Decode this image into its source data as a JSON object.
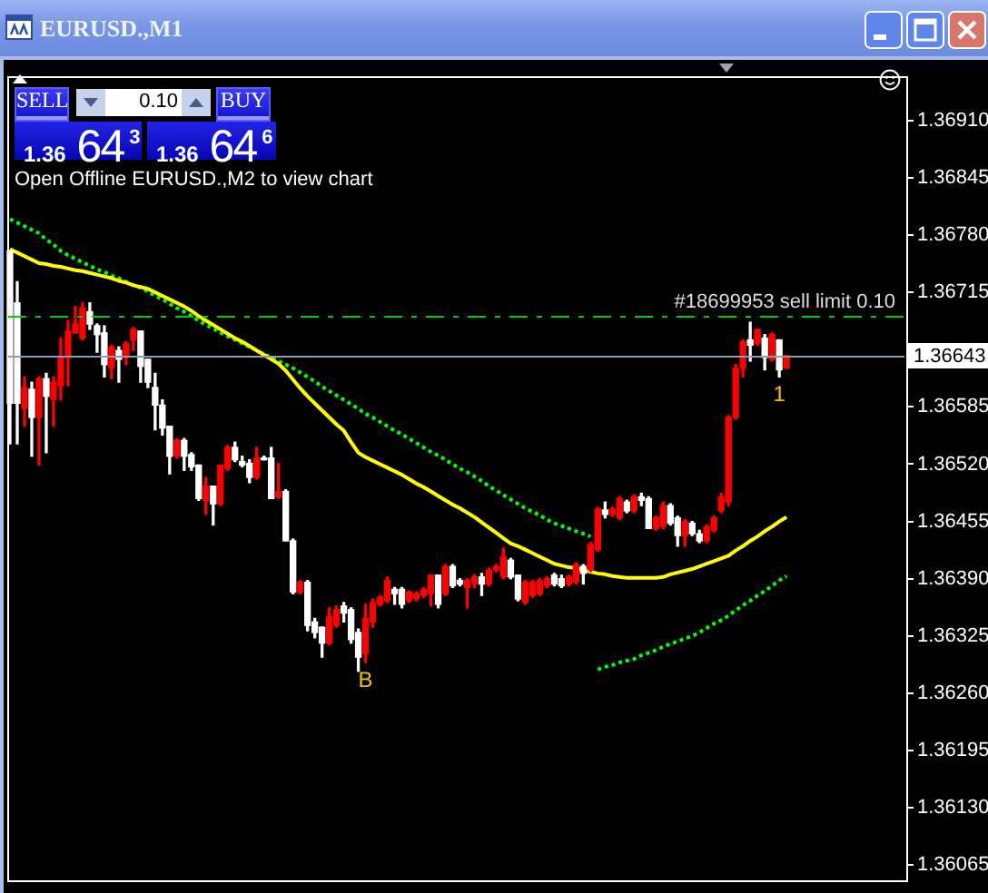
{
  "chart_data": {
    "type": "candlestick",
    "title": "EURUSD.,M1",
    "categories": [
      null,
      null,
      null,
      null,
      null,
      null,
      null,
      null,
      null,
      null,
      null,
      null,
      null,
      null,
      null,
      null,
      null,
      null,
      null,
      null,
      null,
      null,
      null,
      null,
      null,
      null,
      null,
      null,
      null,
      null,
      null,
      null,
      null,
      null,
      null,
      null,
      null,
      null,
      null,
      null,
      null,
      null,
      null,
      null,
      null,
      null,
      null,
      null,
      null,
      null,
      null,
      null,
      null,
      null,
      null,
      null,
      null,
      null,
      null,
      null,
      null,
      null,
      null,
      null,
      null,
      null,
      null,
      null,
      null,
      null,
      null,
      null,
      null,
      null,
      null,
      null,
      null,
      null,
      null,
      null,
      null,
      null,
      null,
      null,
      null,
      null,
      null,
      null,
      null,
      null,
      null,
      null,
      null,
      null,
      null,
      null,
      null,
      null,
      null,
      null,
      null,
      null,
      null,
      null,
      null,
      null,
      null,
      null
    ],
    "ohlc": [
      [
        1.36762,
        1.36762,
        1.36543,
        1.36589
      ],
      [
        1.36703,
        1.36727,
        1.36543,
        1.36589
      ],
      [
        1.36583,
        1.36619,
        1.36563,
        1.36607
      ],
      [
        1.36605,
        1.36613,
        1.36529,
        1.36573
      ],
      [
        1.36573,
        1.36619,
        1.36519,
        1.36617
      ],
      [
        1.36617,
        1.36623,
        1.36533,
        1.36597
      ],
      [
        1.36593,
        1.36619,
        1.36563,
        1.36613
      ],
      [
        1.36609,
        1.36663,
        1.36593,
        1.36641
      ],
      [
        1.36641,
        1.36683,
        1.36609,
        1.36671
      ],
      [
        1.36669,
        1.36699,
        1.36669,
        1.36679
      ],
      [
        1.36663,
        1.36703,
        1.36661,
        1.36697
      ],
      [
        1.36693,
        1.36703,
        1.36673,
        1.36679
      ],
      [
        1.36677,
        1.36679,
        1.36647,
        1.36667
      ],
      [
        1.36669,
        1.36677,
        1.36619,
        1.36633
      ],
      [
        1.36629,
        1.36655,
        1.36617,
        1.36653
      ],
      [
        1.36649,
        1.36653,
        1.36613,
        1.36639
      ],
      [
        1.36641,
        1.36659,
        1.36633,
        1.36657
      ],
      [
        1.36661,
        1.36675,
        1.36649,
        1.36673
      ],
      [
        1.36671,
        1.36671,
        1.36613,
        1.36631
      ],
      [
        1.36639,
        1.36639,
        1.36607,
        1.36613
      ],
      [
        1.36607,
        1.36623,
        1.36559,
        1.36587
      ],
      [
        1.36587,
        1.36593,
        1.36553,
        1.36561
      ],
      [
        1.36563,
        1.36563,
        1.36509,
        1.36529
      ],
      [
        1.36529,
        1.36549,
        1.36527,
        1.36547
      ],
      [
        1.36547,
        1.36549,
        1.36513,
        1.36529
      ],
      [
        1.36531,
        1.36533,
        1.36513,
        1.36517
      ],
      [
        1.36519,
        1.36519,
        1.36479,
        1.36481
      ],
      [
        1.36479,
        1.36505,
        1.36463,
        1.36495
      ],
      [
        1.36495,
        1.36495,
        1.36451,
        1.36475
      ],
      [
        1.36475,
        1.36519,
        1.36473,
        1.36519
      ],
      [
        1.36515,
        1.36541,
        1.36513,
        1.36539
      ],
      [
        1.36539,
        1.36545,
        1.36523,
        1.36525
      ],
      [
        1.36523,
        1.36529,
        1.36517,
        1.36519
      ],
      [
        1.36521,
        1.36525,
        1.36499,
        1.36505
      ],
      [
        1.36505,
        1.36539,
        1.36503,
        1.36527
      ],
      [
        1.36527,
        1.36529,
        1.36525,
        1.36525
      ],
      [
        1.36527,
        1.36539,
        1.36481,
        1.36481
      ],
      [
        1.36483,
        1.36521,
        1.36481,
        1.36489
      ],
      [
        1.36489,
        1.36491,
        1.36433,
        1.36433
      ],
      [
        1.36433,
        1.36435,
        1.36373,
        1.36375
      ],
      [
        1.36375,
        1.36388,
        1.36373,
        1.36386
      ],
      [
        1.36386,
        1.36388,
        1.36331,
        1.36337
      ],
      [
        1.36341,
        1.36345,
        1.36323,
        1.36329
      ],
      [
        1.36335,
        1.36335,
        1.36301,
        1.36317
      ],
      [
        1.36317,
        1.36357,
        1.36315,
        1.36347
      ],
      [
        1.36337,
        1.36359,
        1.36335,
        1.36355
      ],
      [
        1.36359,
        1.36363,
        1.36341,
        1.36351
      ],
      [
        1.36355,
        1.36357,
        1.36317,
        1.36321
      ],
      [
        1.36329,
        1.36333,
        1.36285,
        1.36301
      ],
      [
        1.36305,
        1.36361,
        1.36295,
        1.36345
      ],
      [
        1.36341,
        1.36367,
        1.36335,
        1.36363
      ],
      [
        1.36361,
        1.36371,
        1.36359,
        1.36369
      ],
      [
        1.36365,
        1.36392,
        1.36363,
        1.36388
      ],
      [
        1.36378,
        1.3638,
        1.36361,
        1.36373
      ],
      [
        1.36378,
        1.3638,
        1.36357,
        1.36361
      ],
      [
        1.36365,
        1.36376,
        1.36363,
        1.36375
      ],
      [
        1.36367,
        1.36375,
        1.36365,
        1.36373
      ],
      [
        1.36371,
        1.3638,
        1.36369,
        1.36378
      ],
      [
        1.36373,
        1.36394,
        1.36359,
        1.36394
      ],
      [
        1.36394,
        1.36394,
        1.36357,
        1.36361
      ],
      [
        1.36373,
        1.36406,
        1.36371,
        1.36404
      ],
      [
        1.36404,
        1.36406,
        1.3638,
        1.36382
      ],
      [
        1.36388,
        1.3639,
        1.36382,
        1.36384
      ],
      [
        1.3638,
        1.3639,
        1.36357,
        1.36388
      ],
      [
        1.36384,
        1.36394,
        1.3638,
        1.36392
      ],
      [
        1.36392,
        1.36396,
        1.36371,
        1.36384
      ],
      [
        1.36384,
        1.36402,
        1.36382,
        1.364
      ],
      [
        1.364,
        1.36406,
        1.36398,
        1.36404
      ],
      [
        1.36392,
        1.36425,
        1.3639,
        1.36415
      ],
      [
        1.36411,
        1.36413,
        1.3639,
        1.36392
      ],
      [
        1.36394,
        1.36394,
        1.36365,
        1.36367
      ],
      [
        1.36363,
        1.36388,
        1.36361,
        1.36386
      ],
      [
        1.36371,
        1.36388,
        1.36369,
        1.36386
      ],
      [
        1.36373,
        1.3639,
        1.36371,
        1.36388
      ],
      [
        1.36382,
        1.36392,
        1.3638,
        1.3639
      ],
      [
        1.36394,
        1.36396,
        1.36382,
        1.36384
      ],
      [
        1.3639,
        1.36394,
        1.3638,
        1.36382
      ],
      [
        1.36384,
        1.36394,
        1.36382,
        1.36392
      ],
      [
        1.36386,
        1.36408,
        1.36384,
        1.36406
      ],
      [
        1.36404,
        1.36406,
        1.36384,
        1.36396
      ],
      [
        1.364,
        1.36431,
        1.36398,
        1.36429
      ],
      [
        1.36423,
        1.36471,
        1.36421,
        1.36469
      ],
      [
        1.36468,
        1.36477,
        1.36459,
        1.36463
      ],
      [
        1.36463,
        1.36471,
        1.36461,
        1.36469
      ],
      [
        1.36459,
        1.36483,
        1.36457,
        1.36481
      ],
      [
        1.36477,
        1.36479,
        1.36465,
        1.36467
      ],
      [
        1.36467,
        1.36485,
        1.36465,
        1.36483
      ],
      [
        1.36483,
        1.36487,
        1.36473,
        1.36479
      ],
      [
        1.36481,
        1.36483,
        1.36447,
        1.36447
      ],
      [
        1.36447,
        1.36461,
        1.36445,
        1.36459
      ],
      [
        1.36449,
        1.36477,
        1.36447,
        1.36473
      ],
      [
        1.36473,
        1.36475,
        1.36451,
        1.36453
      ],
      [
        1.36459,
        1.36461,
        1.36427,
        1.36439
      ],
      [
        1.36439,
        1.36457,
        1.36427,
        1.36455
      ],
      [
        1.36453,
        1.36455,
        1.36439,
        1.36441
      ],
      [
        1.36441,
        1.36445,
        1.36431,
        1.36433
      ],
      [
        1.36433,
        1.36451,
        1.36431,
        1.36449
      ],
      [
        1.36445,
        1.36461,
        1.36443,
        1.36459
      ],
      [
        1.36467,
        1.36487,
        1.36465,
        1.36483
      ],
      [
        1.36477,
        1.36575,
        1.36473,
        1.36573
      ],
      [
        1.36573,
        1.36633,
        1.36571,
        1.36629
      ],
      [
        1.36629,
        1.36661,
        1.36619,
        1.36659
      ],
      [
        1.36661,
        1.36681,
        1.36637,
        1.36655
      ],
      [
        1.36657,
        1.36673,
        1.36655,
        1.36673
      ],
      [
        1.36663,
        1.36667,
        1.36627,
        1.36641
      ],
      [
        1.36639,
        1.36669,
        1.36637,
        1.36667
      ],
      [
        1.36661,
        1.36661,
        1.36619,
        1.36627
      ],
      [
        1.36629,
        1.36643,
        1.36629,
        1.36643
      ]
    ],
    "colors": [
      "#ffffff",
      "#ffffff",
      "#ff0000",
      "#ffffff",
      "#ff0000",
      "#ffffff",
      "#ff0000",
      "#ff0000",
      "#ff0000",
      "#ff0000",
      "#ff0000",
      "#ffffff",
      "#ffffff",
      "#ffffff",
      "#ff0000",
      "#ffffff",
      "#ff0000",
      "#ff0000",
      "#ffffff",
      "#ffffff",
      "#ffffff",
      "#ffffff",
      "#ffffff",
      "#ff0000",
      "#ffffff",
      "#ffffff",
      "#ffffff",
      "#ff0000",
      "#ffffff",
      "#ff0000",
      "#ff0000",
      "#ffffff",
      "#ffffff",
      "#ffffff",
      "#ff0000",
      "#ffffff",
      "#ffffff",
      "#ff0000",
      "#ffffff",
      "#ffffff",
      "#ff0000",
      "#ffffff",
      "#ffffff",
      "#ffffff",
      "#ff0000",
      "#ff0000",
      "#ffffff",
      "#ffffff",
      "#ffffff",
      "#ff0000",
      "#ff0000",
      "#ff0000",
      "#ff0000",
      "#ffffff",
      "#ffffff",
      "#ff0000",
      "#ff0000",
      "#ff0000",
      "#ff0000",
      "#ffffff",
      "#ff0000",
      "#ffffff",
      "#ffffff",
      "#ff0000",
      "#ff0000",
      "#ffffff",
      "#ff0000",
      "#ff0000",
      "#ff0000",
      "#ffffff",
      "#ffffff",
      "#ff0000",
      "#ff0000",
      "#ff0000",
      "#ff0000",
      "#ffffff",
      "#ffffff",
      "#ff0000",
      "#ff0000",
      "#ffffff",
      "#ff0000",
      "#ff0000",
      "#ffffff",
      "#ff0000",
      "#ff0000",
      "#ffffff",
      "#ff0000",
      "#ffffff",
      "#ffffff",
      "#ff0000",
      "#ff0000",
      "#ffffff",
      "#ffffff",
      "#ff0000",
      "#ffffff",
      "#ffffff",
      "#ff0000",
      "#ff0000",
      "#ff0000",
      "#ff0000",
      "#ff0000",
      "#ff0000",
      "#ffffff",
      "#ff0000",
      "#ffffff",
      "#ff0000",
      "#ffffff",
      "#ff0000"
    ],
    "value_labels": [
      null,
      null,
      null,
      null,
      null,
      null,
      null,
      null,
      null,
      null,
      null,
      null,
      null,
      null,
      null,
      null,
      null,
      null,
      null,
      null,
      null,
      null,
      null,
      null,
      null,
      null,
      null,
      null,
      null,
      null,
      null,
      null,
      null,
      null,
      null,
      null,
      null,
      null,
      null,
      null,
      null,
      null,
      null,
      null,
      null,
      null,
      null,
      null,
      null,
      "B",
      null,
      null,
      null,
      null,
      null,
      null,
      null,
      null,
      null,
      null,
      null,
      null,
      null,
      null,
      null,
      null,
      null,
      null,
      null,
      null,
      null,
      null,
      null,
      null,
      null,
      null,
      null,
      null,
      null,
      null,
      null,
      null,
      null,
      null,
      null,
      null,
      null,
      null,
      null,
      null,
      null,
      null,
      null,
      null,
      null,
      null,
      null,
      null,
      null,
      null,
      null,
      null,
      null,
      null,
      null,
      null,
      "1",
      null
    ],
    "series": [
      {
        "type": "line",
        "color": "#ffff00",
        "values": [
          1.36764,
          1.3676,
          1.36756,
          1.36752,
          1.36748,
          1.36747,
          1.36745,
          1.36744,
          1.36742,
          1.3674,
          1.36739,
          1.36737,
          1.36735,
          1.36733,
          1.36731,
          1.36728,
          1.36726,
          1.36723,
          1.36721,
          1.36719,
          1.36715,
          1.36711,
          1.36707,
          1.36703,
          1.36699,
          1.36694,
          1.36688,
          1.36683,
          1.36678,
          1.36673,
          1.36668,
          1.36663,
          1.36659,
          1.36654,
          1.36649,
          1.36644,
          1.36639,
          1.36634,
          1.36626,
          1.36616,
          1.36606,
          1.36597,
          1.36589,
          1.36581,
          1.36573,
          1.36565,
          1.36558,
          1.36545,
          1.36533,
          1.36528,
          1.36524,
          1.3652,
          1.36516,
          1.36512,
          1.36508,
          1.36503,
          1.36498,
          1.36494,
          1.36489,
          1.36484,
          1.36479,
          1.36474,
          1.3647,
          1.36465,
          1.3646,
          1.36454,
          1.36448,
          1.36442,
          1.36436,
          1.3643,
          1.36427,
          1.36423,
          1.36419,
          1.36415,
          1.36411,
          1.36407,
          1.36405,
          1.36403,
          1.36402,
          1.364,
          1.36398,
          1.36396,
          1.36395,
          1.36393,
          1.36392,
          1.36391,
          1.36391,
          1.36391,
          1.36391,
          1.36391,
          1.36392,
          1.36395,
          1.36397,
          1.36399,
          1.36401,
          1.36404,
          1.36407,
          1.3641,
          1.36413,
          1.36416,
          1.36422,
          1.36427,
          1.36433,
          1.36438,
          1.36444,
          1.36449,
          1.36455,
          1.3646
        ]
      },
      {
        "type": "line",
        "color": "#00ff00",
        "line_style": "dotted",
        "values": [
          1.36798,
          1.36794,
          1.3679,
          1.36786,
          1.36782,
          1.36775,
          1.36769,
          1.36762,
          1.36757,
          1.36753,
          1.36749,
          1.36745,
          1.36741,
          1.36738,
          1.36734,
          1.36731,
          1.36727,
          1.36723,
          1.3672,
          1.36716,
          1.36711,
          1.36707,
          1.36702,
          1.36697,
          1.36693,
          1.36688,
          1.36683,
          1.36678,
          1.36674,
          1.36669,
          1.36665,
          1.36661,
          1.36657,
          1.36653,
          1.36649,
          1.36645,
          1.36641,
          1.36637,
          1.36633,
          1.36629,
          1.36624,
          1.36619,
          1.36614,
          1.36608,
          1.36603,
          1.36598,
          1.36593,
          1.36588,
          1.36583,
          1.36577,
          1.36573,
          1.36568,
          1.36563,
          1.36558,
          1.36554,
          1.36549,
          1.36544,
          1.36539,
          1.36534,
          1.3653,
          1.36525,
          1.3652,
          1.36515,
          1.36511,
          1.36506,
          1.36501,
          1.36495,
          1.3649,
          1.36485,
          1.3648,
          1.36475,
          1.3647,
          1.36466,
          1.36462,
          1.36457,
          1.36453,
          1.3645,
          1.36447,
          1.36444,
          1.36441,
          1.36438,
          null,
          null,
          null,
          null,
          null,
          null,
          null,
          null,
          null,
          null,
          null,
          null,
          null,
          null,
          null,
          null,
          null,
          null,
          null,
          null,
          null,
          null,
          null,
          null,
          null,
          null,
          null
        ]
      },
      {
        "type": "line",
        "color": "#00ff00",
        "line_style": "dotted",
        "values": [
          null,
          null,
          null,
          null,
          null,
          null,
          null,
          null,
          null,
          null,
          null,
          null,
          null,
          null,
          null,
          null,
          null,
          null,
          null,
          null,
          null,
          null,
          null,
          null,
          null,
          null,
          null,
          null,
          null,
          null,
          null,
          null,
          null,
          null,
          null,
          null,
          null,
          null,
          null,
          null,
          null,
          null,
          null,
          null,
          null,
          null,
          null,
          null,
          null,
          null,
          null,
          null,
          null,
          null,
          null,
          null,
          null,
          null,
          null,
          null,
          null,
          null,
          null,
          null,
          null,
          null,
          null,
          null,
          null,
          null,
          null,
          null,
          null,
          null,
          null,
          null,
          null,
          null,
          null,
          null,
          null,
          1.36287,
          1.3629,
          1.36292,
          1.36295,
          1.36297,
          1.36299,
          1.36303,
          1.36306,
          1.36309,
          1.36313,
          1.36316,
          1.36319,
          1.36322,
          1.36325,
          1.36329,
          1.36334,
          1.36339,
          1.36343,
          1.36348,
          1.36354,
          1.3636,
          1.36365,
          1.36371,
          1.36376,
          1.36382,
          1.36388,
          1.36393
        ]
      }
    ],
    "ylim": [
      1.36047,
      1.36961
    ],
    "yticks": [
      {
        "value": 1.3691,
        "label": "1.36910"
      },
      1.36845,
      {
        "value": 1.3678,
        "label": "1.36780"
      },
      1.36715,
      1.36585,
      {
        "value": 1.3652,
        "label": "1.36520"
      },
      1.36455,
      {
        "value": 1.3639,
        "label": "1.36390"
      },
      1.36325,
      {
        "value": 1.3626,
        "label": "1.36260"
      },
      1.36195,
      {
        "value": 1.3613,
        "label": "1.36130"
      },
      1.36065
    ],
    "tick_labels": "y",
    "ref_lines": [
      {
        "axis": "y",
        "value": 1.36688,
        "label": "#18699953 sell limit 0.10",
        "color": "#00cc00",
        "line_style": "dashed"
      },
      {
        "axis": "y",
        "value": 1.36643,
        "label": "1.36643",
        "color": "#8c9cb4"
      }
    ],
    "annotations": [
      "SELL",
      "0.10",
      "BUY",
      "1.36 64$^{3}$",
      "1.36 64$^{6}$",
      "Open Offline EURUSD.,M2 to view chart"
    ]
  }
}
